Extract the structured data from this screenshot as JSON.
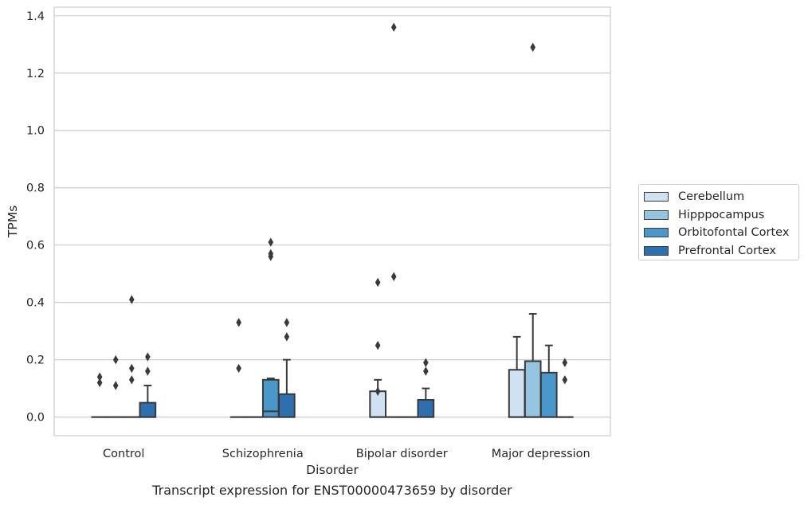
{
  "caption": "Transcript expression for ENST00000473659 by disorder",
  "chart_data": {
    "type": "box",
    "xlabel": "Disorder",
    "ylabel": "TPMs",
    "ylim": [
      -0.065,
      1.43
    ],
    "yticks": [
      0.0,
      0.2,
      0.4,
      0.6,
      0.8,
      1.0,
      1.2,
      1.4
    ],
    "ytick_labels": [
      "0.0",
      "0.2",
      "0.4",
      "0.6",
      "0.8",
      "1.0",
      "1.2",
      "1.4"
    ],
    "grid": true,
    "legend_position": "right",
    "categories": [
      "Control",
      "Schizophrenia",
      "Bipolar disorder",
      "Major depression"
    ],
    "series": [
      {
        "name": "Cerebellum",
        "color": "#d0e1f2",
        "boxes": [
          {
            "q1": 0,
            "median": 0,
            "q3": 0,
            "whislo": 0,
            "whishi": 0,
            "fliers": [
              0.12,
              0.14
            ]
          },
          {
            "q1": 0,
            "median": 0,
            "q3": 0,
            "whislo": 0,
            "whishi": 0,
            "fliers": [
              0.17,
              0.33
            ]
          },
          {
            "q1": 0,
            "median": 0,
            "q3": 0.09,
            "whislo": 0,
            "whishi": 0.13,
            "fliers": [
              0.09,
              0.25,
              0.47
            ]
          },
          {
            "q1": 0,
            "median": 0,
            "q3": 0.165,
            "whislo": 0,
            "whishi": 0.28,
            "fliers": []
          }
        ]
      },
      {
        "name": "Hipppocampus",
        "color": "#94c4df",
        "boxes": [
          {
            "q1": 0,
            "median": 0,
            "q3": 0,
            "whislo": 0,
            "whishi": 0,
            "fliers": [
              0.11,
              0.2
            ]
          },
          {
            "q1": 0,
            "median": 0,
            "q3": 0,
            "whislo": 0,
            "whishi": 0,
            "fliers": []
          },
          {
            "q1": 0,
            "median": 0,
            "q3": 0,
            "whislo": 0,
            "whishi": 0,
            "fliers": [
              0.49,
              1.36
            ]
          },
          {
            "q1": 0,
            "median": 0,
            "q3": 0.195,
            "whislo": 0,
            "whishi": 0.36,
            "fliers": [
              1.29
            ]
          }
        ]
      },
      {
        "name": "Orbitofontal Cortex",
        "color": "#4a98c9",
        "boxes": [
          {
            "q1": 0,
            "median": 0,
            "q3": 0,
            "whislo": 0,
            "whishi": 0,
            "fliers": [
              0.13,
              0.17,
              0.41
            ]
          },
          {
            "q1": 0,
            "median": 0.02,
            "q3": 0.13,
            "whislo": 0,
            "whishi": 0.135,
            "fliers": [
              0.56,
              0.57,
              0.61
            ]
          },
          {
            "q1": 0,
            "median": 0,
            "q3": 0,
            "whislo": 0,
            "whishi": 0,
            "fliers": []
          },
          {
            "q1": 0,
            "median": 0,
            "q3": 0.155,
            "whislo": 0,
            "whishi": 0.25,
            "fliers": []
          }
        ]
      },
      {
        "name": "Prefrontal Cortex",
        "color": "#2e6faf",
        "boxes": [
          {
            "q1": 0,
            "median": 0,
            "q3": 0.05,
            "whislo": 0,
            "whishi": 0.11,
            "fliers": [
              0.16,
              0.21
            ]
          },
          {
            "q1": 0,
            "median": 0,
            "q3": 0.08,
            "whislo": 0,
            "whishi": 0.2,
            "fliers": [
              0.28,
              0.33
            ]
          },
          {
            "q1": 0,
            "median": 0,
            "q3": 0.06,
            "whislo": 0,
            "whishi": 0.1,
            "fliers": [
              0.16,
              0.19
            ]
          },
          {
            "q1": 0,
            "median": 0,
            "q3": 0,
            "whislo": 0,
            "whishi": 0,
            "fliers": [
              0.13,
              0.19
            ]
          }
        ]
      }
    ]
  }
}
